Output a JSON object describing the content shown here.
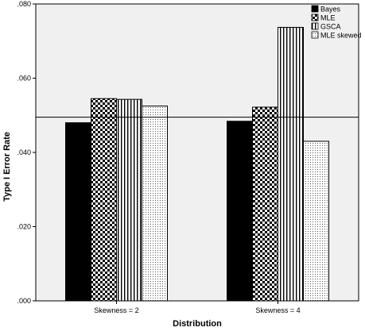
{
  "chart_data": {
    "type": "bar",
    "xlabel": "Distribution",
    "ylabel": "Type I Error Rate",
    "categories": [
      "Skewness = 2",
      "Skewness = 4"
    ],
    "series": [
      {
        "name": "Bayes",
        "values": [
          0.048,
          0.0484
        ],
        "pattern": "solid-black"
      },
      {
        "name": "MLE",
        "values": [
          0.0545,
          0.0522
        ],
        "pattern": "checkerboard"
      },
      {
        "name": "GSCA",
        "values": [
          0.0543,
          0.0737
        ],
        "pattern": "vertical-lines"
      },
      {
        "name": "MLE skewed",
        "values": [
          0.0525,
          0.043
        ],
        "pattern": "dotted"
      }
    ],
    "ylim": [
      0,
      0.08
    ],
    "yticks": [
      ".000",
      ".020",
      ".040",
      ".060",
      ".080"
    ],
    "ytick_values": [
      0,
      0.02,
      0.04,
      0.06,
      0.08
    ],
    "reference_line": 0.0495,
    "legend_position": "top-right",
    "grid": false,
    "colors": {
      "plot_background": "#f0f0f0",
      "bar_fill": "#000000",
      "bar_outline": "#000000"
    }
  }
}
